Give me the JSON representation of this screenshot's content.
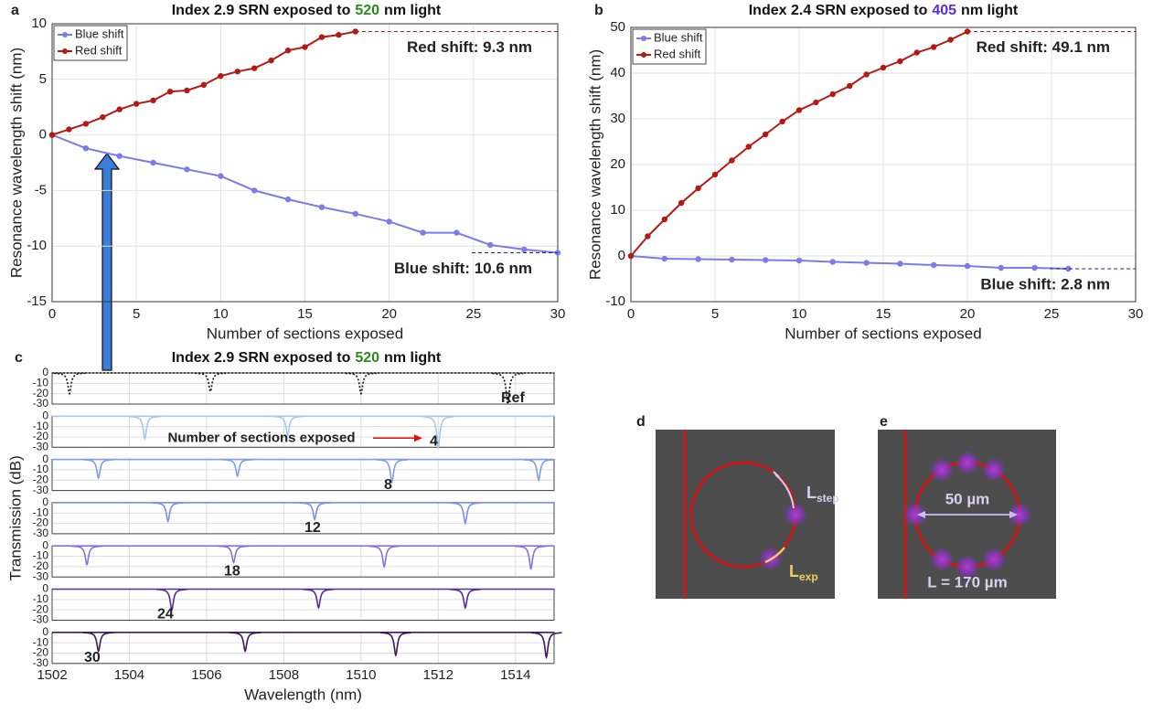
{
  "chart_data": [
    {
      "panel": "a",
      "type": "line",
      "title_parts": [
        {
          "text": "Index 2.9 SRN exposed to",
          "color": "#111111"
        },
        {
          "text": "520",
          "color": "#2a8a1a"
        },
        {
          "text": "nm light",
          "color": "#111111"
        }
      ],
      "x_label": "Number of sections exposed",
      "y_label": "Resonance wavelength shift (nm)",
      "xlim": [
        0,
        30
      ],
      "xticks": [
        0,
        5,
        10,
        15,
        20,
        25,
        30
      ],
      "ylim": [
        -15,
        10
      ],
      "yticks": [
        -15,
        -10,
        -5,
        0,
        5,
        10
      ],
      "grid": true,
      "legend": "upper left",
      "series": [
        {
          "name": "Blue shift",
          "color": "#7b7bea",
          "x": [
            0,
            2,
            4,
            6,
            8,
            10,
            12,
            14,
            16,
            18,
            20,
            22,
            24,
            26,
            28,
            30
          ],
          "values": [
            0,
            -1.2,
            -1.9,
            -2.5,
            -3.1,
            -3.7,
            -5.0,
            -5.8,
            -6.5,
            -7.1,
            -7.8,
            -8.8,
            -8.8,
            -9.9,
            -10.3,
            -10.6
          ]
        },
        {
          "name": "Red shift",
          "color": "#b51a12",
          "x": [
            0,
            1,
            2,
            3,
            4,
            5,
            6,
            7,
            8,
            9,
            10,
            11,
            12,
            13,
            14,
            15,
            16,
            17,
            18
          ],
          "values": [
            0,
            0.5,
            1.0,
            1.6,
            2.3,
            2.8,
            3.1,
            3.9,
            4.0,
            4.5,
            5.3,
            5.7,
            6.0,
            6.7,
            7.6,
            7.9,
            8.8,
            9.0,
            9.3
          ]
        }
      ],
      "annotations": [
        {
          "text": "Red shift: 9.3 nm",
          "color": "#a01212"
        },
        {
          "text": "Blue shift: 10.6 nm",
          "color": "#2a1aa0"
        }
      ]
    },
    {
      "panel": "b",
      "type": "line",
      "title_parts": [
        {
          "text": "Index 2.4 SRN exposed to",
          "color": "#111111"
        },
        {
          "text": "405",
          "color": "#5a2ae0"
        },
        {
          "text": "nm light",
          "color": "#111111"
        }
      ],
      "x_label": "Number of sections exposed",
      "y_label": "Resonance wavelength shift (nm)",
      "xlim": [
        0,
        30
      ],
      "xticks": [
        0,
        5,
        10,
        15,
        20,
        25,
        30
      ],
      "ylim": [
        -10,
        50
      ],
      "yticks": [
        -10,
        0,
        10,
        20,
        30,
        40,
        50
      ],
      "grid": true,
      "legend": "upper left",
      "series": [
        {
          "name": "Blue shift",
          "color": "#7b7bea",
          "x": [
            0,
            2,
            4,
            6,
            8,
            10,
            12,
            14,
            16,
            18,
            20,
            22,
            24,
            26
          ],
          "values": [
            0,
            -0.6,
            -0.7,
            -0.8,
            -0.9,
            -1.0,
            -1.3,
            -1.5,
            -1.7,
            -2.0,
            -2.2,
            -2.6,
            -2.6,
            -2.8
          ]
        },
        {
          "name": "Red shift",
          "color": "#b51a12",
          "x": [
            0,
            1,
            2,
            3,
            4,
            5,
            6,
            7,
            8,
            9,
            10,
            11,
            12,
            13,
            14,
            15,
            16,
            17,
            18,
            19,
            20
          ],
          "values": [
            0,
            4.3,
            8.0,
            11.6,
            14.8,
            17.8,
            20.9,
            23.9,
            26.6,
            29.4,
            31.9,
            33.6,
            35.4,
            37.2,
            39.7,
            41.2,
            42.6,
            44.5,
            45.7,
            47.3,
            49.1
          ]
        }
      ],
      "annotations": [
        {
          "text": "Red shift: 49.1 nm",
          "color": "#a01212"
        },
        {
          "text": "Blue shift: 2.8 nm",
          "color": "#2a1aa0"
        }
      ]
    },
    {
      "panel": "c",
      "type": "spectra",
      "title_parts": [
        {
          "text": "Index 2.9 SRN exposed to",
          "color": "#111111"
        },
        {
          "text": "520",
          "color": "#2a8a1a"
        },
        {
          "text": "nm light",
          "color": "#111111"
        }
      ],
      "x_label": "Wavelength (nm)",
      "y_label": "Transmission (dB)",
      "xlim": [
        1502,
        1515
      ],
      "xticks": [
        1502,
        1504,
        1506,
        1508,
        1510,
        1512,
        1514
      ],
      "ylim": [
        -30,
        0
      ],
      "yticks": [
        0,
        -10,
        -20,
        -30
      ],
      "grid": true,
      "series": [
        {
          "name": "Ref",
          "color": "#111111",
          "dips_nm": [
            1502.45,
            1506.1,
            1510.0,
            1513.8
          ],
          "values": [
            -20,
            -18,
            -20,
            -30
          ]
        },
        {
          "name": "4",
          "color": "#a6c8ea",
          "dips_nm": [
            1504.4,
            1508.1,
            1512.0
          ],
          "values": [
            -22,
            -18,
            -30
          ]
        },
        {
          "name": "8",
          "color": "#7f9fe0",
          "dips_nm": [
            1503.2,
            1506.8,
            1510.8,
            1514.6
          ],
          "values": [
            -18,
            -16,
            -22,
            -20
          ]
        },
        {
          "name": "12",
          "color": "#7b8fe8",
          "dips_nm": [
            1505.0,
            1508.8,
            1512.7
          ],
          "values": [
            -18,
            -16,
            -20
          ]
        },
        {
          "name": "18",
          "color": "#8a6fe0",
          "dips_nm": [
            1502.9,
            1506.7,
            1510.6,
            1514.4
          ],
          "values": [
            -18,
            -16,
            -20,
            -22
          ]
        },
        {
          "name": "24",
          "color": "#5a2a9a",
          "dips_nm": [
            1505.1,
            1508.9,
            1512.7
          ],
          "values": [
            -20,
            -18,
            -18
          ]
        },
        {
          "name": "30",
          "color": "#3c1a5e",
          "dips_nm": [
            1503.2,
            1507.0,
            1510.9,
            1514.8
          ],
          "values": [
            -18,
            -18,
            -22,
            -24
          ]
        }
      ],
      "annotations": [
        {
          "text": "Number of sections exposed",
          "color": "#e01010"
        }
      ]
    }
  ],
  "diagrams": [
    {
      "panel": "d",
      "labels": [
        {
          "text": "L",
          "sub": "step"
        },
        {
          "text": "L",
          "sub": "exp"
        }
      ]
    },
    {
      "panel": "e",
      "labels": [
        {
          "text": "50 µm"
        },
        {
          "text": "L = 170 µm"
        }
      ]
    }
  ]
}
